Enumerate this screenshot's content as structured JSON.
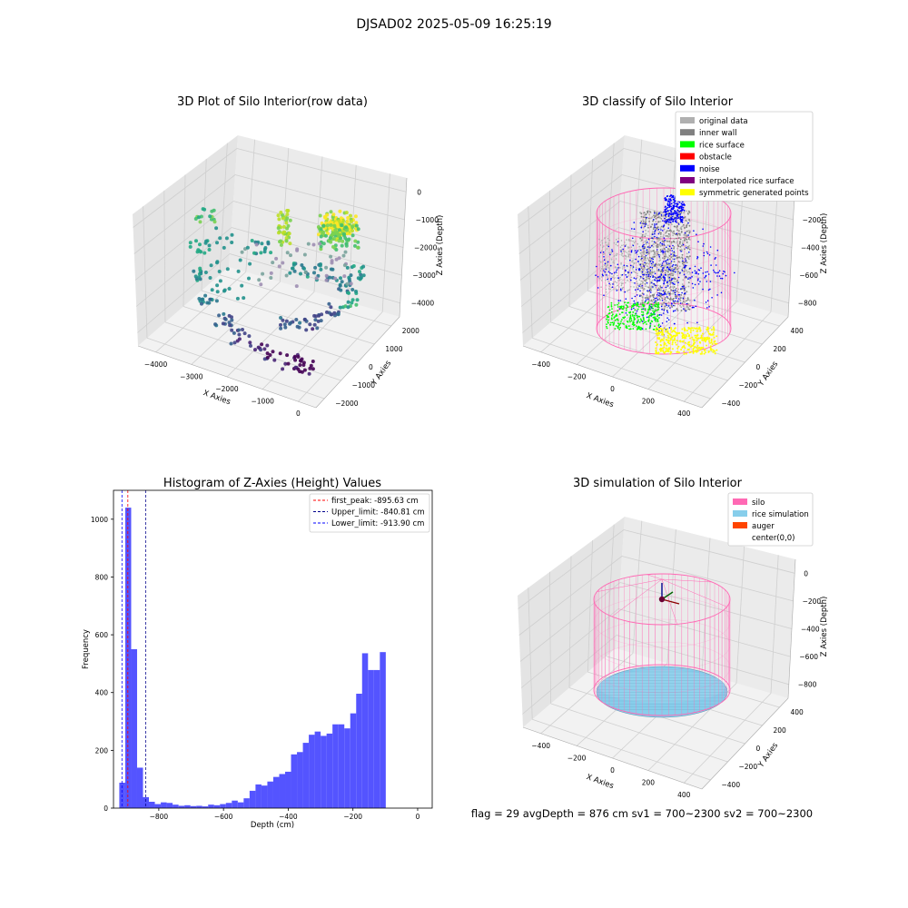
{
  "figure_title": "DJSAD02 2025-05-09 16:25:19",
  "status_line": "flag = 29  avgDepth = 876 cm  sv1 = 700~2300  sv2 = 700~2300",
  "colors": {
    "silo": "#ff69b4",
    "rice_simulation": "#87ceeb",
    "auger": "#ff4500",
    "hist_bar": "#4b4bff",
    "original_data": "#b0b0b0",
    "inner_wall": "#808080",
    "rice_surface": "#00ff00",
    "obstacle": "#ff0000",
    "noise": "#0000ff",
    "interpolated_rice_surface": "#800080",
    "symmetric_generated_points": "#ffff00"
  },
  "chart_data": [
    {
      "type": "scatter",
      "title": "3D Plot of Silo Interior(row data)",
      "xlabel": "X Axies",
      "ylabel": "Y Axies",
      "zlabel": "Z Axies (Depth)",
      "x_ticks": [
        "−4000",
        "−3000",
        "−2000",
        "−1000",
        "0"
      ],
      "y_ticks": [
        "−2000",
        "−1000",
        "0",
        "1000",
        "2000"
      ],
      "z_ticks": [
        "0",
        "−1000",
        "−2000",
        "−3000",
        "−4000"
      ],
      "xlim": [
        -4500,
        500
      ],
      "ylim": [
        -2500,
        2500
      ],
      "zlim": [
        -4500,
        500
      ],
      "colormap": "viridis",
      "grid": true
    },
    {
      "type": "scatter",
      "title": "3D classify of Silo Interior",
      "xlabel": "X Axies",
      "ylabel": "Y Axies",
      "zlabel": "Z Axies (Depth)",
      "x_ticks": [
        "−400",
        "−200",
        "0",
        "200",
        "400"
      ],
      "y_ticks": [
        "−400",
        "−200",
        "0",
        "200",
        "400"
      ],
      "z_ticks": [
        "0",
        "−200",
        "−400",
        "−600",
        "−800"
      ],
      "xlim": [
        -500,
        500
      ],
      "ylim": [
        -500,
        500
      ],
      "zlim": [
        -900,
        50
      ],
      "legend": [
        "original data",
        "inner wall",
        "rice surface",
        "obstacle",
        "noise",
        "interpolated rice surface",
        "symmetric generated points"
      ],
      "legend_position": "top-right",
      "grid": true
    },
    {
      "type": "bar",
      "title": "Histogram of Z-Axies (Height) Values",
      "xlabel": "Depth (cm)",
      "ylabel": "Frequency",
      "x_ticks": [
        "−800",
        "−600",
        "−400",
        "−200",
        "0"
      ],
      "y_ticks": [
        "0",
        "200",
        "400",
        "600",
        "800",
        "1000"
      ],
      "xlim": [
        -940,
        45
      ],
      "ylim": [
        0,
        1100
      ],
      "bin_start": -922,
      "bin_width": 18.3,
      "values": [
        88,
        1040,
        550,
        140,
        38,
        22,
        14,
        20,
        18,
        12,
        8,
        10,
        7,
        8,
        6,
        12,
        10,
        14,
        18,
        26,
        20,
        34,
        60,
        82,
        78,
        92,
        108,
        118,
        126,
        186,
        194,
        226,
        254,
        265,
        250,
        258,
        290,
        290,
        276,
        328,
        396,
        536,
        478,
        478,
        540
      ],
      "lines": [
        {
          "label": "first_peak: -895.63 cm",
          "x": -895.63,
          "color": "#ff0000"
        },
        {
          "label": "Upper_limit: -840.81 cm",
          "x": -840.81,
          "color": "#00008b"
        },
        {
          "label": "Lower_limit: -913.90 cm",
          "x": -913.9,
          "color": "#0000ff"
        }
      ],
      "legend_position": "top-right"
    },
    {
      "type": "scatter",
      "title": "3D simulation of Silo Interior",
      "xlabel": "X Axies",
      "ylabel": "Y Axies",
      "zlabel": "Z Axies (Depth)",
      "x_ticks": [
        "−400",
        "−200",
        "0",
        "200",
        "400"
      ],
      "y_ticks": [
        "−400",
        "−200",
        "0",
        "200",
        "400"
      ],
      "z_ticks": [
        "0",
        "−200",
        "−400",
        "−600",
        "−800"
      ],
      "xlim": [
        -500,
        500
      ],
      "ylim": [
        -500,
        500
      ],
      "zlim": [
        -900,
        50
      ],
      "legend": [
        "silo",
        "rice simulation",
        "auger",
        "center(0,0)"
      ],
      "legend_position": "top-right",
      "grid": true
    }
  ]
}
